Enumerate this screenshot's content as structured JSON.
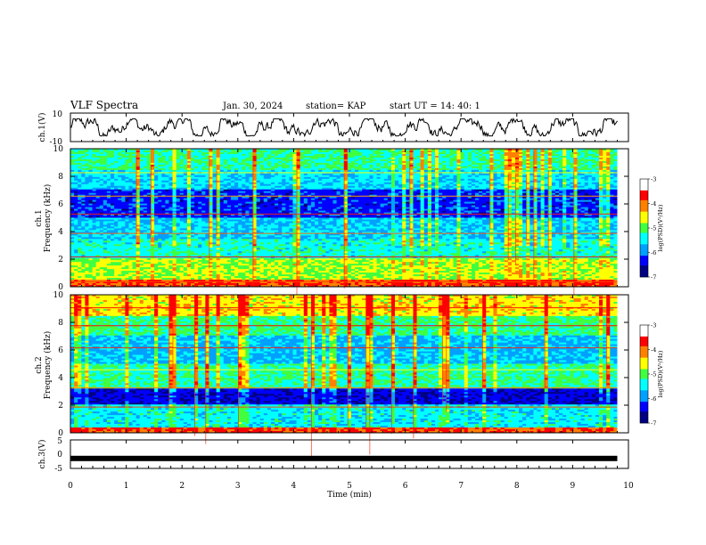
{
  "header": {
    "title": "VLF Spectra",
    "date": "Jan. 30, 2024",
    "station": "station= KAP",
    "start_time": "start  UT =   14: 40: 1"
  },
  "chart_data": [
    {
      "type": "line",
      "panel": "ch1-waveform",
      "ylabel": "ch.1(V)",
      "ylim": [
        -10,
        10
      ],
      "yticks": [
        "10",
        "-10"
      ],
      "xlim": [
        0,
        10
      ],
      "description_values": "waveform oscillating roughly between -5 and +5 V"
    },
    {
      "type": "heatmap",
      "panel": "ch1-spectrogram",
      "ylabel": "ch.1\nFrequency (kHz)",
      "ylabel_line1": "ch.1",
      "ylabel_line2": "Frequency (kHz)",
      "ylim": [
        0,
        10
      ],
      "yticks": [
        "0",
        "2",
        "4",
        "6",
        "8",
        "10"
      ],
      "xlim": [
        0,
        10
      ],
      "colorbar": {
        "label": "log(PSD)(V²/Hz)",
        "min": -7,
        "max": -3,
        "ticks": [
          "-3",
          "-4",
          "-5",
          "-6",
          "-7"
        ]
      }
    },
    {
      "type": "heatmap",
      "panel": "ch2-spectrogram",
      "ylabel_line1": "ch.2",
      "ylabel_line2": "Frequency (kHz)",
      "ylim": [
        0,
        10
      ],
      "yticks": [
        "0",
        "2",
        "4",
        "6",
        "8",
        "10"
      ],
      "xlim": [
        0,
        10
      ],
      "colorbar": {
        "label": "log(PSD)(V²/Hz)",
        "min": -7,
        "max": -3,
        "ticks": [
          "-3",
          "-4",
          "-5",
          "-6",
          "-7"
        ]
      }
    },
    {
      "type": "line",
      "panel": "ch3-waveform",
      "ylabel": "ch.3(V)",
      "ylim": [
        -5,
        5
      ],
      "yticks": [
        "5",
        "0",
        "-5"
      ],
      "xlim": [
        0,
        10
      ],
      "value": -1.5
    }
  ],
  "xaxis": {
    "label": "Time  (min)",
    "ticks": [
      "0",
      "1",
      "2",
      "3",
      "4",
      "5",
      "6",
      "7",
      "8",
      "9",
      "10"
    ]
  },
  "colors": {
    "axis": "#000000",
    "colormap": [
      "#000080",
      "#0000ff",
      "#00a0ff",
      "#00ffff",
      "#40ff40",
      "#ffff00",
      "#ff8000",
      "#ff0000",
      "#ffffff"
    ]
  }
}
